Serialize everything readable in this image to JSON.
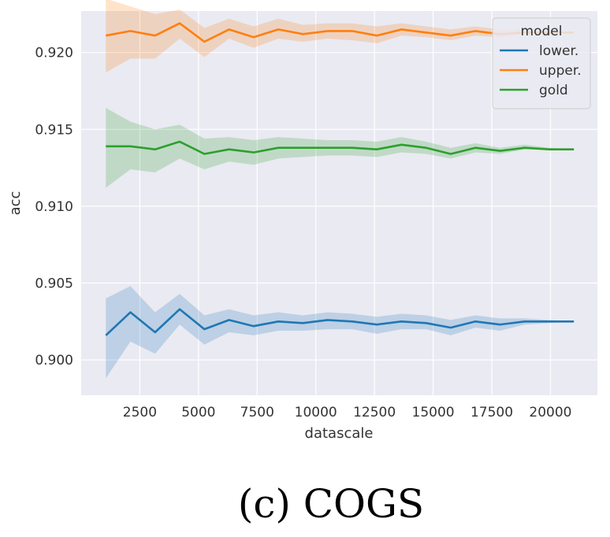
{
  "chart_data": {
    "type": "line",
    "xlabel": "datascale",
    "ylabel": "acc",
    "xlim": [
      0,
      22000
    ],
    "ylim": [
      0.8977,
      0.9227
    ],
    "xticks": [
      2500,
      5000,
      7500,
      10000,
      12500,
      15000,
      17500,
      20000
    ],
    "xtick_labels": [
      "2500",
      "5000",
      "7500",
      "10000",
      "12500",
      "15000",
      "17500",
      "20000"
    ],
    "yticks": [
      0.9,
      0.905,
      0.91,
      0.915,
      0.92
    ],
    "ytick_labels": [
      "0.900",
      "0.905",
      "0.910",
      "0.915",
      "0.920"
    ],
    "grid": true,
    "legend": {
      "title": "model",
      "placement": "top-right"
    },
    "x": [
      1050,
      2100,
      3150,
      4200,
      5250,
      6300,
      7350,
      8400,
      9450,
      10500,
      11550,
      12600,
      13650,
      14700,
      15750,
      16800,
      17850,
      18900,
      19950,
      21000
    ],
    "series": [
      {
        "name": "lower.",
        "color": "#1f77b4",
        "values": [
          0.9016,
          0.9031,
          0.9018,
          0.9033,
          0.902,
          0.9026,
          0.9022,
          0.9025,
          0.9024,
          0.9026,
          0.9025,
          0.9023,
          0.9025,
          0.9024,
          0.9021,
          0.9025,
          0.9023,
          0.9025,
          0.9025,
          0.9025
        ],
        "ci_lower": [
          0.8988,
          0.9012,
          0.9004,
          0.9023,
          0.901,
          0.9018,
          0.9016,
          0.9019,
          0.9019,
          0.902,
          0.902,
          0.9017,
          0.902,
          0.902,
          0.9016,
          0.9021,
          0.9019,
          0.9023,
          0.9024,
          0.9025
        ],
        "ci_upper": [
          0.904,
          0.9048,
          0.9031,
          0.9043,
          0.9029,
          0.9033,
          0.9029,
          0.9031,
          0.9029,
          0.9031,
          0.903,
          0.9028,
          0.903,
          0.9029,
          0.9026,
          0.9029,
          0.9027,
          0.9027,
          0.9026,
          0.9025
        ]
      },
      {
        "name": "upper.",
        "color": "#ff7f0e",
        "values": [
          0.9211,
          0.9214,
          0.9211,
          0.9219,
          0.9207,
          0.9215,
          0.921,
          0.9215,
          0.9212,
          0.9214,
          0.9214,
          0.9211,
          0.9215,
          0.9213,
          0.9211,
          0.9214,
          0.9212,
          0.9213,
          0.9213,
          0.9213
        ],
        "ci_lower": [
          0.9187,
          0.9196,
          0.9196,
          0.9209,
          0.9197,
          0.9209,
          0.9203,
          0.9209,
          0.9207,
          0.9209,
          0.9208,
          0.9206,
          0.9211,
          0.921,
          0.9208,
          0.9211,
          0.921,
          0.9212,
          0.9213,
          0.9213
        ],
        "ci_upper": [
          0.9235,
          0.923,
          0.9225,
          0.9228,
          0.9216,
          0.9222,
          0.9217,
          0.9222,
          0.9218,
          0.9219,
          0.9219,
          0.9217,
          0.9219,
          0.9217,
          0.9215,
          0.9217,
          0.9215,
          0.9215,
          0.9214,
          0.9213
        ]
      },
      {
        "name": "gold",
        "color": "#2ca02c",
        "values": [
          0.9139,
          0.9139,
          0.9137,
          0.9142,
          0.9134,
          0.9137,
          0.9135,
          0.9138,
          0.9138,
          0.9138,
          0.9138,
          0.9137,
          0.914,
          0.9138,
          0.9134,
          0.9138,
          0.9136,
          0.9138,
          0.9137,
          0.9137
        ],
        "ci_lower": [
          0.9112,
          0.9124,
          0.9122,
          0.9131,
          0.9124,
          0.9129,
          0.9127,
          0.9131,
          0.9132,
          0.9133,
          0.9133,
          0.9132,
          0.9135,
          0.9134,
          0.9131,
          0.9135,
          0.9134,
          0.9137,
          0.9137,
          0.9137
        ],
        "ci_upper": [
          0.9164,
          0.9155,
          0.915,
          0.9153,
          0.9144,
          0.9145,
          0.9143,
          0.9145,
          0.9144,
          0.9143,
          0.9143,
          0.9142,
          0.9145,
          0.9142,
          0.9138,
          0.9141,
          0.9138,
          0.914,
          0.9138,
          0.9137
        ]
      }
    ]
  },
  "caption": "(c) COGS"
}
